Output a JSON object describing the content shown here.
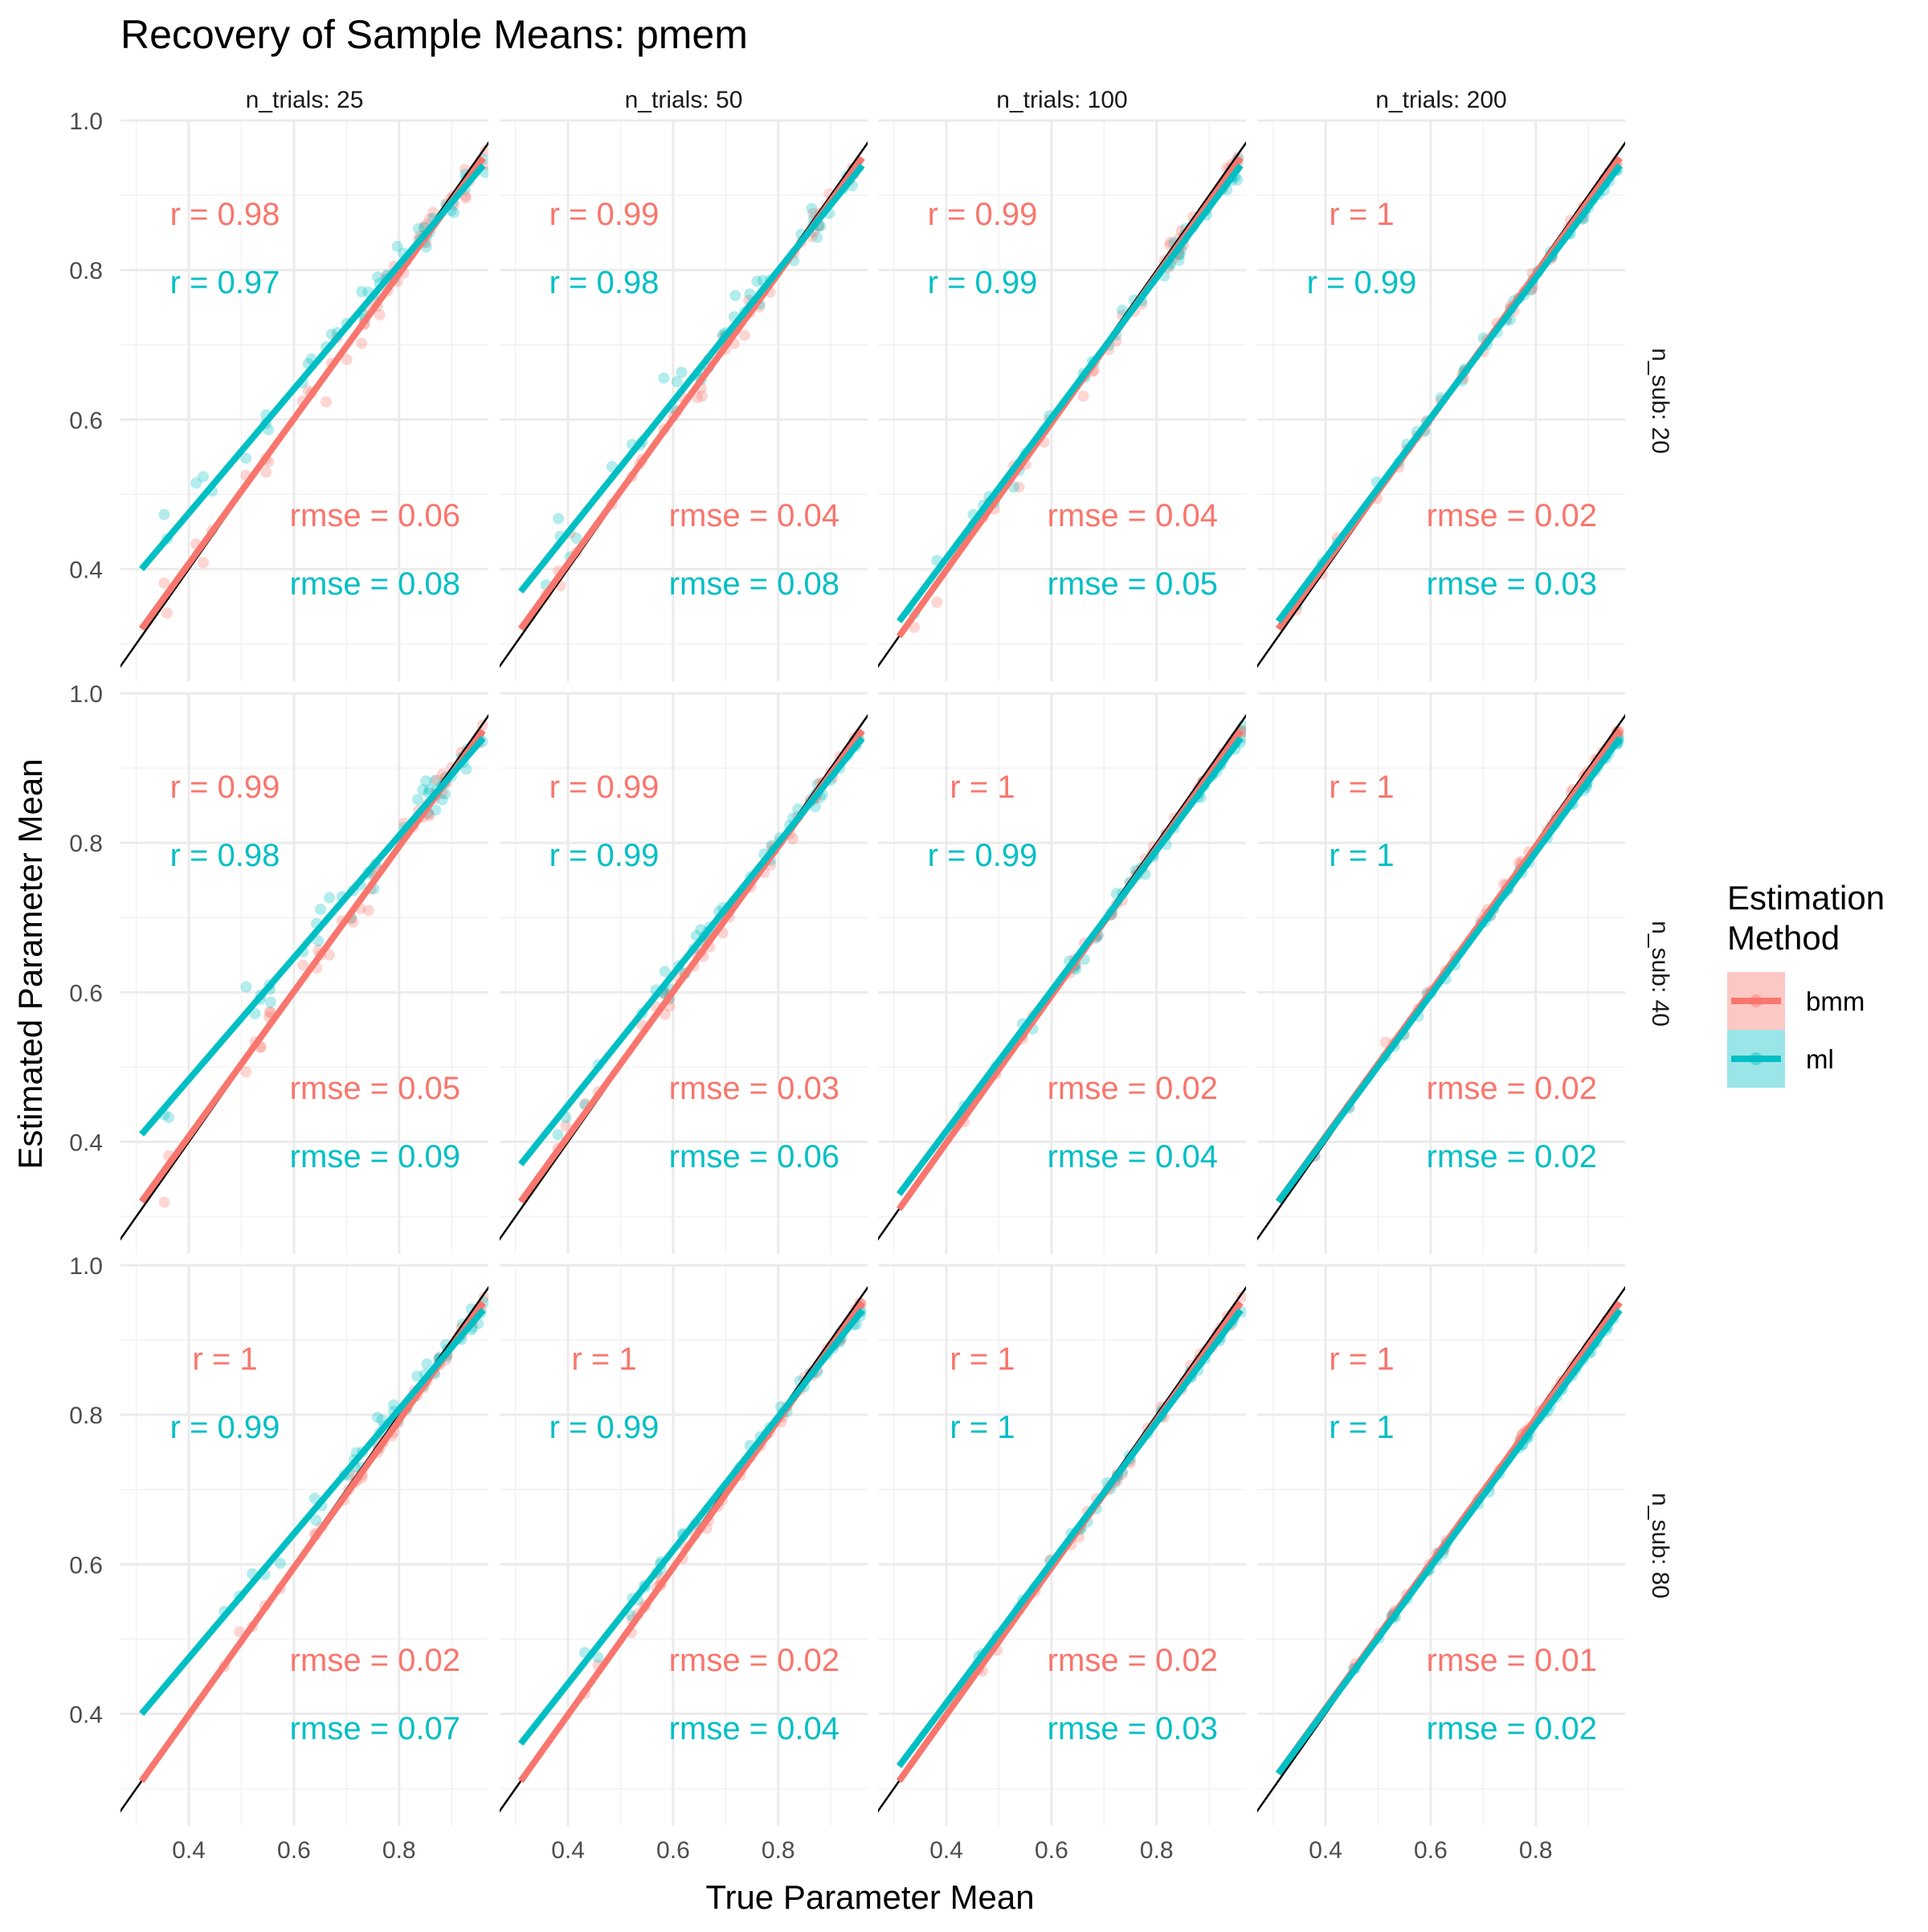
{
  "chart_data": {
    "type": "scatter",
    "title": "Recovery of Sample Means: pmem",
    "xlabel": "True Parameter Mean",
    "ylabel": "Estimated Parameter Mean",
    "facet_cols_label": "n_trials",
    "facet_rows_label": "n_sub",
    "col_values": [
      25,
      50,
      100,
      200
    ],
    "row_values": [
      20,
      40,
      80
    ],
    "col_strip_labels": [
      "n_trials: 25",
      "n_trials: 50",
      "n_trials: 100",
      "n_trials: 200"
    ],
    "row_strip_labels": [
      "n_sub: 20",
      "n_sub: 40",
      "n_sub: 80"
    ],
    "xlim": [
      0.27,
      0.97
    ],
    "ylim": [
      0.25,
      1.0
    ],
    "x_ticks": [
      "0.4",
      "0.6",
      "0.8"
    ],
    "x_tick_values": [
      0.4,
      0.6,
      0.8
    ],
    "y_ticks": [
      "0.4",
      "0.6",
      "0.8",
      "1.0"
    ],
    "y_tick_values": [
      0.4,
      0.6,
      0.8,
      1.0
    ],
    "grid": true,
    "identity_line": true,
    "legend": {
      "title": "Estimation Method",
      "title_lines": [
        "Estimation",
        "Method"
      ],
      "position": "right",
      "entries": [
        {
          "name": "bmm",
          "color": "#F8766D"
        },
        {
          "name": "ml",
          "color": "#00BFC4"
        }
      ]
    },
    "series": [
      {
        "name": "bmm",
        "color": "#F8766D"
      },
      {
        "name": "ml",
        "color": "#00BFC4"
      }
    ],
    "panels": [
      {
        "row": 0,
        "col": 0,
        "r_bmm": "r = 0.98",
        "r_ml": "r = 0.97",
        "rmse_bmm": "rmse = 0.06",
        "rmse_ml": "rmse = 0.08",
        "fit_bmm": [
          [
            0.31,
            0.32
          ],
          [
            0.96,
            0.95
          ]
        ],
        "fit_ml": [
          [
            0.31,
            0.4
          ],
          [
            0.96,
            0.94
          ]
        ]
      },
      {
        "row": 0,
        "col": 1,
        "r_bmm": "r = 0.99",
        "r_ml": "r = 0.98",
        "rmse_bmm": "rmse = 0.04",
        "rmse_ml": "rmse = 0.08",
        "fit_bmm": [
          [
            0.31,
            0.32
          ],
          [
            0.96,
            0.95
          ]
        ],
        "fit_ml": [
          [
            0.31,
            0.37
          ],
          [
            0.96,
            0.94
          ]
        ]
      },
      {
        "row": 0,
        "col": 2,
        "r_bmm": "r = 0.99",
        "r_ml": "r = 0.99",
        "rmse_bmm": "rmse = 0.04",
        "rmse_ml": "rmse = 0.05",
        "fit_bmm": [
          [
            0.31,
            0.31
          ],
          [
            0.96,
            0.95
          ]
        ],
        "fit_ml": [
          [
            0.31,
            0.33
          ],
          [
            0.96,
            0.94
          ]
        ]
      },
      {
        "row": 0,
        "col": 3,
        "r_bmm": "r = 1",
        "r_ml": "r = 0.99",
        "rmse_bmm": "rmse = 0.02",
        "rmse_ml": "rmse = 0.03",
        "fit_bmm": [
          [
            0.31,
            0.32
          ],
          [
            0.96,
            0.95
          ]
        ],
        "fit_ml": [
          [
            0.31,
            0.33
          ],
          [
            0.96,
            0.94
          ]
        ]
      },
      {
        "row": 1,
        "col": 0,
        "r_bmm": "r = 0.99",
        "r_ml": "r = 0.98",
        "rmse_bmm": "rmse = 0.05",
        "rmse_ml": "rmse = 0.09",
        "fit_bmm": [
          [
            0.31,
            0.32
          ],
          [
            0.96,
            0.95
          ]
        ],
        "fit_ml": [
          [
            0.31,
            0.41
          ],
          [
            0.96,
            0.94
          ]
        ]
      },
      {
        "row": 1,
        "col": 1,
        "r_bmm": "r = 0.99",
        "r_ml": "r = 0.99",
        "rmse_bmm": "rmse = 0.03",
        "rmse_ml": "rmse = 0.06",
        "fit_bmm": [
          [
            0.31,
            0.32
          ],
          [
            0.96,
            0.95
          ]
        ],
        "fit_ml": [
          [
            0.31,
            0.37
          ],
          [
            0.96,
            0.94
          ]
        ]
      },
      {
        "row": 1,
        "col": 2,
        "r_bmm": "r = 1",
        "r_ml": "r = 0.99",
        "rmse_bmm": "rmse = 0.02",
        "rmse_ml": "rmse = 0.04",
        "fit_bmm": [
          [
            0.31,
            0.31
          ],
          [
            0.96,
            0.95
          ]
        ],
        "fit_ml": [
          [
            0.31,
            0.33
          ],
          [
            0.96,
            0.94
          ]
        ]
      },
      {
        "row": 1,
        "col": 3,
        "r_bmm": "r = 1",
        "r_ml": "r = 1",
        "rmse_bmm": "rmse = 0.02",
        "rmse_ml": "rmse = 0.02",
        "fit_bmm": [
          [
            0.31,
            0.32
          ],
          [
            0.96,
            0.95
          ]
        ],
        "fit_ml": [
          [
            0.31,
            0.32
          ],
          [
            0.96,
            0.94
          ]
        ]
      },
      {
        "row": 2,
        "col": 0,
        "r_bmm": "r = 1",
        "r_ml": "r = 0.99",
        "rmse_bmm": "rmse = 0.02",
        "rmse_ml": "rmse = 0.07",
        "fit_bmm": [
          [
            0.31,
            0.31
          ],
          [
            0.96,
            0.95
          ]
        ],
        "fit_ml": [
          [
            0.31,
            0.4
          ],
          [
            0.96,
            0.94
          ]
        ]
      },
      {
        "row": 2,
        "col": 1,
        "r_bmm": "r = 1",
        "r_ml": "r = 0.99",
        "rmse_bmm": "rmse = 0.02",
        "rmse_ml": "rmse = 0.04",
        "fit_bmm": [
          [
            0.31,
            0.31
          ],
          [
            0.96,
            0.95
          ]
        ],
        "fit_ml": [
          [
            0.31,
            0.36
          ],
          [
            0.96,
            0.94
          ]
        ]
      },
      {
        "row": 2,
        "col": 2,
        "r_bmm": "r = 1",
        "r_ml": "r = 1",
        "rmse_bmm": "rmse = 0.02",
        "rmse_ml": "rmse = 0.03",
        "fit_bmm": [
          [
            0.31,
            0.31
          ],
          [
            0.96,
            0.95
          ]
        ],
        "fit_ml": [
          [
            0.31,
            0.33
          ],
          [
            0.96,
            0.94
          ]
        ]
      },
      {
        "row": 2,
        "col": 3,
        "r_bmm": "r = 1",
        "r_ml": "r = 1",
        "rmse_bmm": "rmse = 0.01",
        "rmse_ml": "rmse = 0.02",
        "fit_bmm": [
          [
            0.31,
            0.32
          ],
          [
            0.96,
            0.95
          ]
        ],
        "fit_ml": [
          [
            0.31,
            0.32
          ],
          [
            0.96,
            0.94
          ]
        ]
      }
    ]
  }
}
